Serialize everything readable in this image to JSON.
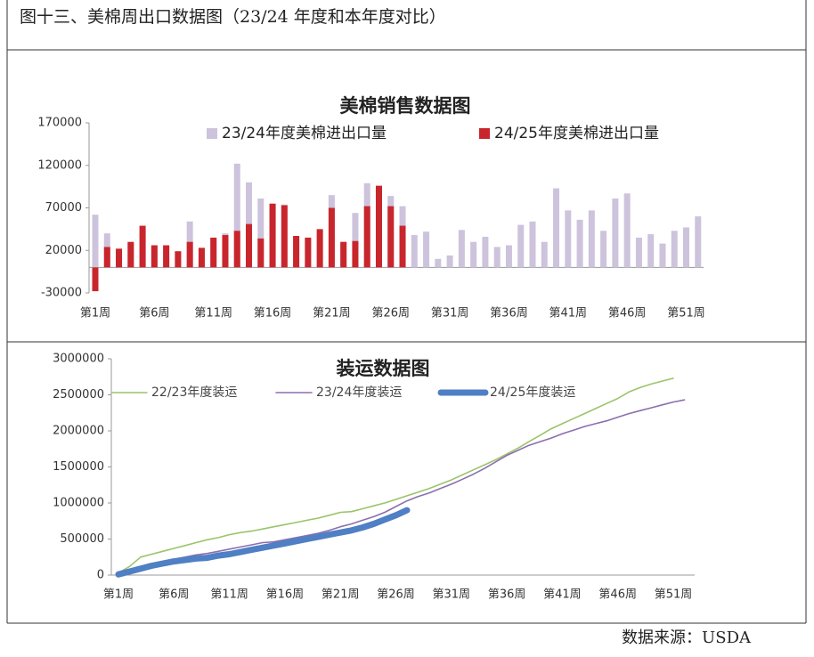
{
  "header": {
    "title": "图十三、美棉周出口数据图（23/24 年度和本年度对比）"
  },
  "footer": {
    "source": "数据来源：USDA"
  },
  "chart_data": [
    {
      "type": "bar",
      "title": "美棉销售数据图",
      "categories": [
        "第1周",
        null,
        null,
        null,
        null,
        "第6周",
        null,
        null,
        null,
        null,
        "第11周",
        null,
        null,
        null,
        null,
        "第16周",
        null,
        null,
        null,
        null,
        "第21周",
        null,
        null,
        null,
        null,
        "第26周",
        null,
        null,
        null,
        null,
        "第31周",
        null,
        null,
        null,
        null,
        "第36周",
        null,
        null,
        null,
        null,
        "第41周",
        null,
        null,
        null,
        null,
        "第46周",
        null,
        null,
        null,
        null,
        "第51周",
        null
      ],
      "series": [
        {
          "name": "23/24年度美棉进出口量",
          "color": "#cdc3dc",
          "values": [
            62000,
            40000,
            22000,
            28000,
            42000,
            26000,
            24000,
            18000,
            54000,
            22000,
            34000,
            40000,
            122000,
            100000,
            81000,
            74000,
            74000,
            36000,
            34000,
            44000,
            85000,
            30000,
            64000,
            99000,
            96000,
            84000,
            72000,
            38000,
            42000,
            10000,
            14000,
            44000,
            30000,
            36000,
            24000,
            26000,
            50000,
            54000,
            30000,
            93000,
            67000,
            56000,
            67000,
            43000,
            81000,
            87000,
            35000,
            39000,
            28000,
            43000,
            47000,
            60000
          ]
        },
        {
          "name": "24/25年度美棉进出口量",
          "color": "#c8262c",
          "values": [
            -28000,
            24000,
            22000,
            30000,
            49000,
            26000,
            26000,
            19000,
            30000,
            23000,
            35000,
            38000,
            43000,
            51000,
            34000,
            75000,
            73000,
            37000,
            35000,
            45000,
            70000,
            30000,
            31000,
            72000,
            96000,
            72000,
            49000,
            null,
            null,
            null,
            null,
            null,
            null,
            null,
            null,
            null,
            null,
            null,
            null,
            null,
            null,
            null,
            null,
            null,
            null,
            null,
            null,
            null,
            null,
            null,
            null,
            null
          ]
        }
      ],
      "ylim": [
        -30000,
        170000
      ],
      "yticks": [
        -30000,
        20000,
        70000,
        120000,
        170000
      ],
      "grid": false,
      "legend": "top"
    },
    {
      "type": "line",
      "title": "装运数据图",
      "categories": [
        "第1周",
        null,
        null,
        null,
        null,
        "第6周",
        null,
        null,
        null,
        null,
        "第11周",
        null,
        null,
        null,
        null,
        "第16周",
        null,
        null,
        null,
        null,
        "第21周",
        null,
        null,
        null,
        null,
        "第26周",
        null,
        null,
        null,
        null,
        "第31周",
        null,
        null,
        null,
        null,
        "第36周",
        null,
        null,
        null,
        null,
        "第41周",
        null,
        null,
        null,
        null,
        "第46周",
        null,
        null,
        null,
        null,
        "第51周",
        null
      ],
      "series": [
        {
          "name": "22/23年度装运",
          "color": "#9bc46a",
          "values": [
            30000,
            120000,
            250000,
            290000,
            330000,
            370000,
            410000,
            450000,
            490000,
            520000,
            560000,
            590000,
            610000,
            640000,
            670000,
            700000,
            730000,
            760000,
            790000,
            830000,
            870000,
            880000,
            920000,
            960000,
            1000000,
            1050000,
            1100000,
            1150000,
            1200000,
            1260000,
            1320000,
            1390000,
            1460000,
            1530000,
            1600000,
            1680000,
            1760000,
            1850000,
            1940000,
            2030000,
            2100000,
            2170000,
            2240000,
            2310000,
            2380000,
            2450000,
            2540000,
            2600000,
            2650000,
            2690000,
            2730000,
            null
          ]
        },
        {
          "name": "23/24年度装运",
          "color": "#8b6fae",
          "values": [
            20000,
            60000,
            100000,
            150000,
            190000,
            220000,
            250000,
            280000,
            300000,
            330000,
            360000,
            390000,
            420000,
            450000,
            460000,
            490000,
            520000,
            550000,
            580000,
            620000,
            670000,
            710000,
            760000,
            810000,
            870000,
            950000,
            1030000,
            1090000,
            1140000,
            1200000,
            1260000,
            1330000,
            1400000,
            1480000,
            1570000,
            1660000,
            1730000,
            1800000,
            1850000,
            1900000,
            1960000,
            2010000,
            2060000,
            2100000,
            2140000,
            2190000,
            2240000,
            2280000,
            2320000,
            2360000,
            2400000,
            2430000
          ]
        },
        {
          "name": "24/25年度装运",
          "color": "#4f7fc4",
          "values": [
            10000,
            50000,
            90000,
            130000,
            160000,
            190000,
            210000,
            230000,
            240000,
            270000,
            290000,
            320000,
            350000,
            380000,
            410000,
            440000,
            470000,
            500000,
            530000,
            560000,
            590000,
            620000,
            660000,
            710000,
            770000,
            830000,
            900000,
            null,
            null,
            null,
            null,
            null,
            null,
            null,
            null,
            null,
            null,
            null,
            null,
            null,
            null,
            null,
            null,
            null,
            null,
            null,
            null,
            null,
            null,
            null,
            null,
            null
          ]
        }
      ],
      "ylim": [
        0,
        3000000
      ],
      "yticks": [
        0,
        500000,
        1000000,
        1500000,
        2000000,
        2500000,
        3000000
      ],
      "grid": false,
      "legend": "top-left"
    }
  ]
}
